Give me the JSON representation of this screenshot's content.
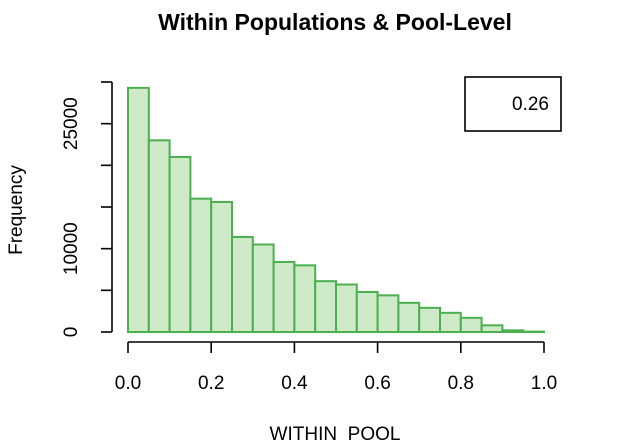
{
  "chart_data": {
    "type": "bar",
    "title": "Within Populations & Pool-Level",
    "xlabel": "WITHIN_POOL",
    "ylabel": "Frequency",
    "bin_edges": [
      0.0,
      0.05,
      0.1,
      0.15,
      0.2,
      0.25,
      0.3,
      0.35,
      0.4,
      0.45,
      0.5,
      0.55,
      0.6,
      0.65,
      0.7,
      0.75,
      0.8,
      0.85,
      0.9,
      0.95,
      1.0
    ],
    "values": [
      29300,
      23000,
      21000,
      16000,
      15600,
      11400,
      10500,
      8400,
      8000,
      6100,
      5700,
      4800,
      4400,
      3500,
      2900,
      2300,
      1700,
      800,
      200,
      50
    ],
    "xlim": [
      0,
      1
    ],
    "ylim": [
      0,
      30000
    ],
    "x_ticks": [
      0.0,
      0.2,
      0.4,
      0.6,
      0.8,
      1.0
    ],
    "x_tick_labels": [
      "0.0",
      "0.2",
      "0.4",
      "0.6",
      "0.8",
      "1.0"
    ],
    "y_ticks": [
      0,
      5000,
      10000,
      15000,
      20000,
      25000,
      30000
    ],
    "y_tick_labels": [
      "0",
      "",
      "10000",
      "",
      "",
      "25000",
      ""
    ],
    "bar_fill": "#cfeac8",
    "bar_stroke": "#4caf50",
    "legend": {
      "position": "top-right",
      "text": "0.26"
    }
  }
}
